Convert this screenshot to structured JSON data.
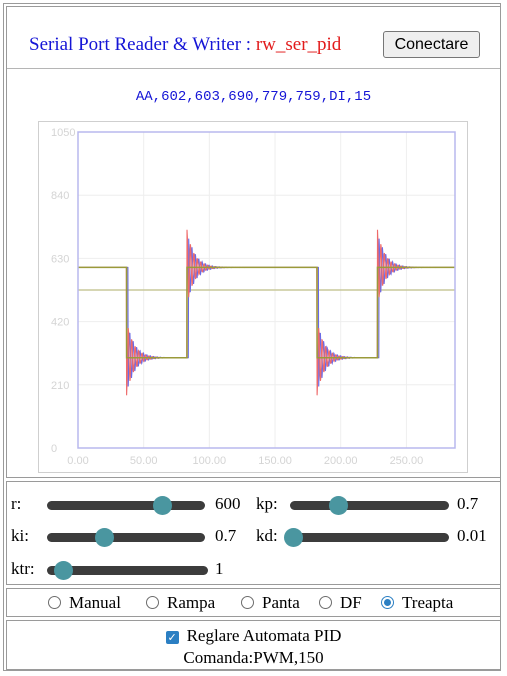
{
  "header": {
    "title_prefix": "Serial Port Reader & Writer : ",
    "title_name": "rw_ser_pid",
    "connect_label": "Conectare",
    "serial_line": "AA,602,603,690,779,759,DI,15"
  },
  "chart_data": {
    "type": "line",
    "xlim": [
      0,
      287
    ],
    "ylim": [
      0,
      1050
    ],
    "xticks": [
      0,
      50,
      100,
      150,
      200,
      250
    ],
    "xtick_labels": [
      "0.00",
      "50.00",
      "100.00",
      "150.00",
      "200.00",
      "250.00"
    ],
    "yticks": [
      0,
      210,
      420,
      630,
      840,
      1050
    ],
    "ytick_labels": [
      "0",
      "210",
      "420",
      "630",
      "840",
      "1050"
    ],
    "grid": true,
    "colors": {
      "reference": "#9a9a3a",
      "constant": "#c8c89a",
      "output_red": "#ee6a6a",
      "output_blue": "#6a6ae6",
      "axis_frame": "#b8b8ee"
    },
    "series": [
      {
        "role": "reference-step",
        "points": [
          [
            0,
            600
          ],
          [
            37,
            600
          ],
          [
            37,
            300
          ],
          [
            83,
            300
          ],
          [
            83,
            600
          ],
          [
            182,
            600
          ],
          [
            182,
            300
          ],
          [
            228,
            300
          ],
          [
            228,
            600
          ],
          [
            287,
            600
          ]
        ]
      },
      {
        "role": "constant-level",
        "points": [
          [
            0,
            525
          ],
          [
            287,
            525
          ]
        ]
      },
      {
        "role": "response-red",
        "low": 300,
        "high": 600,
        "step_times": [
          37,
          83,
          182,
          228
        ],
        "overshoot": 125,
        "tau": 5.5,
        "period": 2.6
      },
      {
        "role": "response-blue",
        "low": 300,
        "high": 600,
        "step_times": [
          37,
          83,
          182,
          228
        ],
        "overshoot": 105,
        "tau": 6.0,
        "period": 2.6,
        "delay": 1.1
      }
    ]
  },
  "sliders": [
    {
      "key": "r",
      "label": "r:",
      "value": "600",
      "fraction": 0.73
    },
    {
      "key": "kp",
      "label": "kp:",
      "value": "0.7",
      "fraction": 0.3
    },
    {
      "key": "ki",
      "label": "ki:",
      "value": "0.7",
      "fraction": 0.36
    },
    {
      "key": "kd",
      "label": "kd:",
      "value": "0.01",
      "fraction": 0.02
    },
    {
      "key": "ktr",
      "label": "ktr:",
      "value": "1",
      "fraction": 0.1
    }
  ],
  "modes": {
    "options": [
      "Manual",
      "Rampa",
      "Panta",
      "DF",
      "Treapta"
    ],
    "selected": "Treapta"
  },
  "pid": {
    "checkbox_label": "Reglare Automata PID",
    "checked": true,
    "command_text": "Comanda:PWM,150"
  }
}
